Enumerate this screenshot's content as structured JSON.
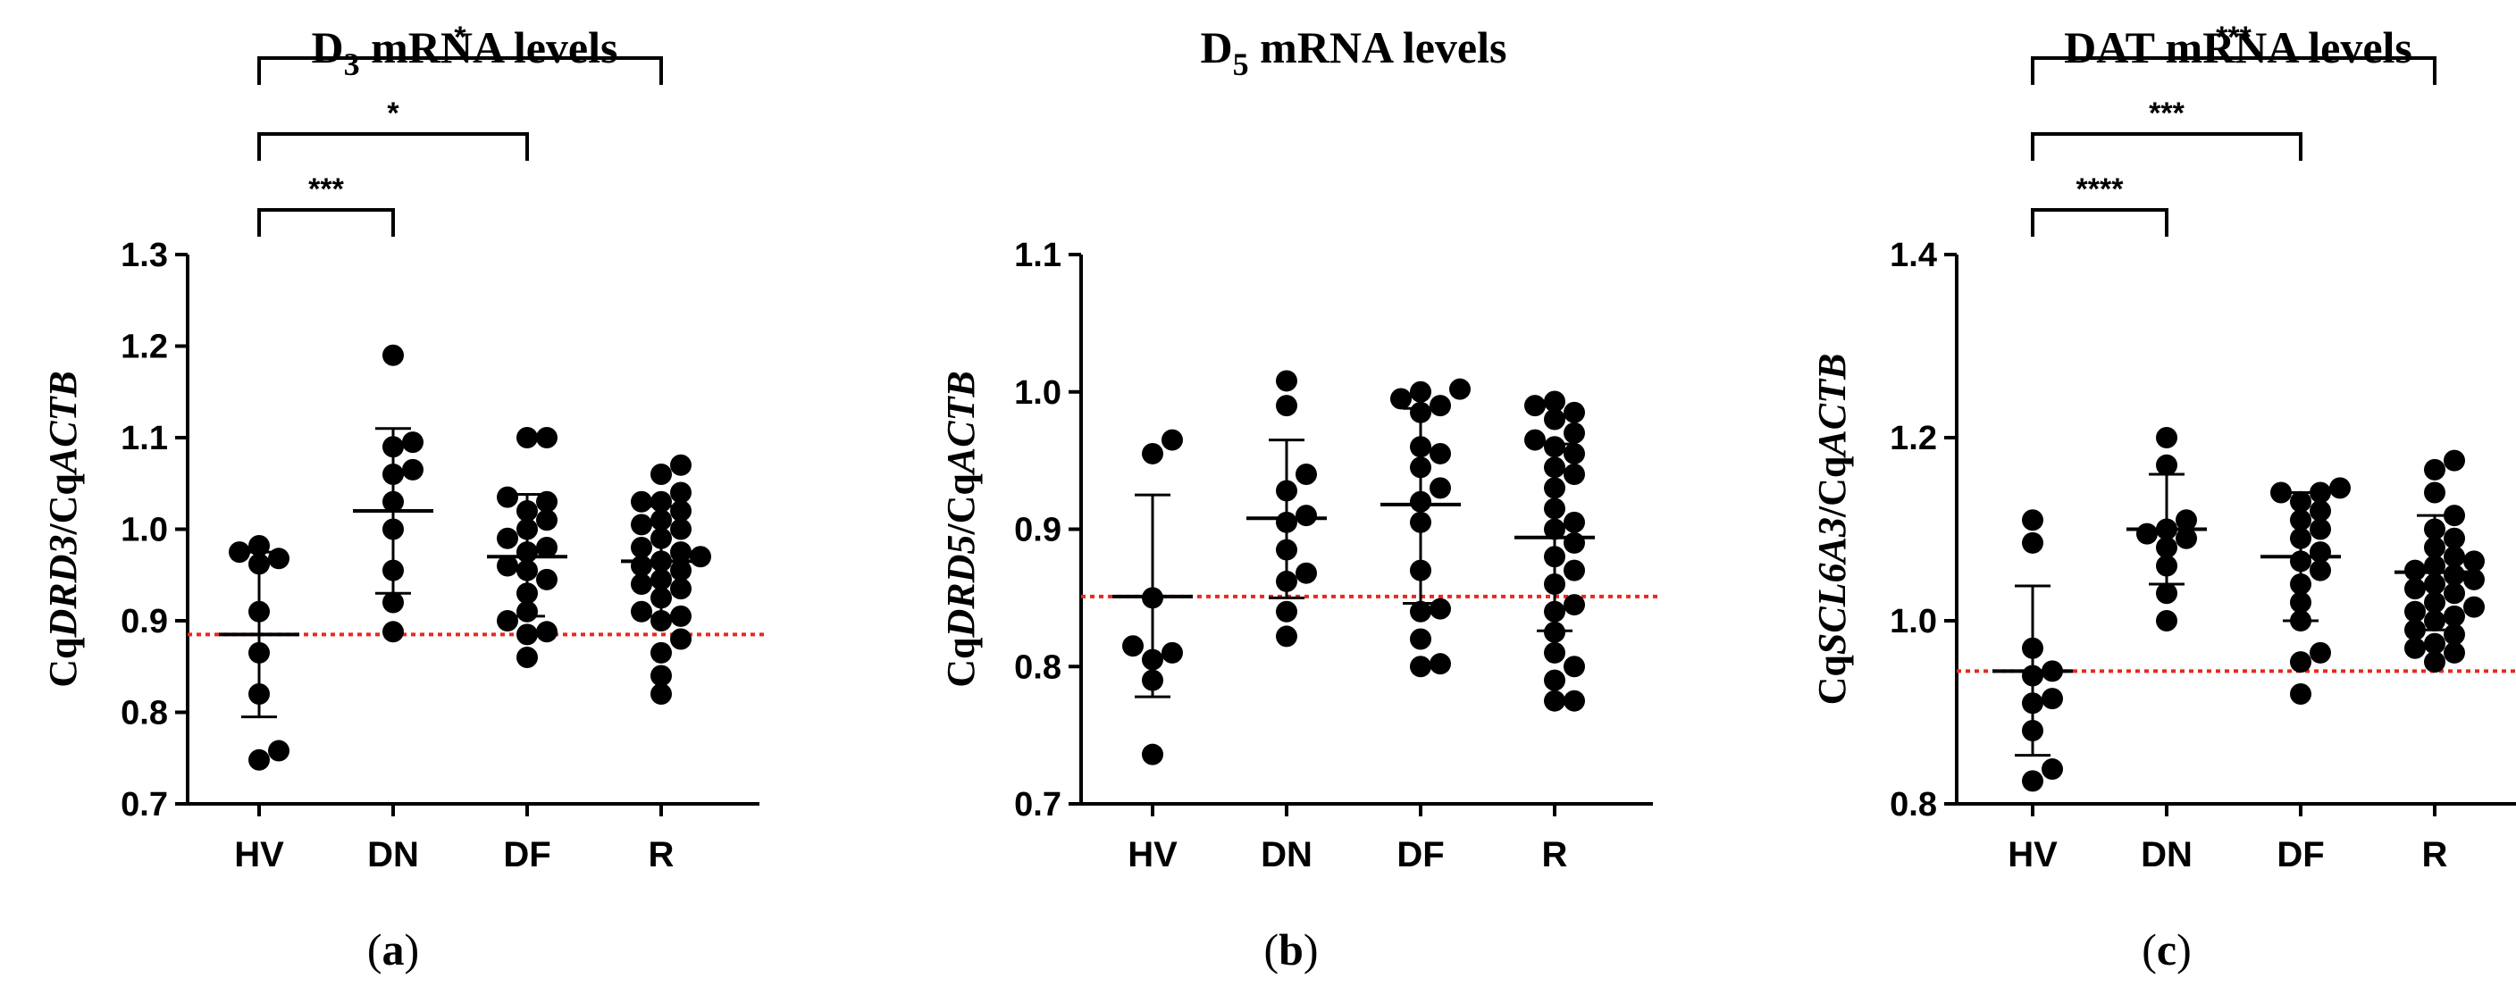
{
  "chart_data": [
    {
      "type": "scatter",
      "panel": "(a)",
      "title_main": "D",
      "title_sub": "3",
      "title_rest": " mRNA levels",
      "ylabel_prefix": "Cq",
      "ylabel_gene": "DRD3",
      "ylabel_sep": "/Cq",
      "ylabel_ref": "ACTB",
      "ylim": [
        0.7,
        1.3
      ],
      "yticks": [
        "0.7",
        "0.8",
        "0.9",
        "1.0",
        "1.1",
        "1.2",
        "1.3"
      ],
      "categories": [
        "HV",
        "DN",
        "DF",
        "R"
      ],
      "reference_line": 0.885,
      "reference_color": "#e8291c",
      "groups": [
        {
          "name": "HV",
          "mean": 0.885,
          "sd_low": 0.795,
          "sd_high": 0.975,
          "points": [
            0.748,
            0.758,
            0.82,
            0.865,
            0.91,
            0.962,
            0.968,
            0.975,
            0.982
          ]
        },
        {
          "name": "DN",
          "mean": 1.02,
          "sd_low": 0.93,
          "sd_high": 1.11,
          "points": [
            0.888,
            0.92,
            0.955,
            1.0,
            1.03,
            1.06,
            1.065,
            1.09,
            1.095,
            1.19
          ]
        },
        {
          "name": "DF",
          "mean": 0.97,
          "sd_low": 0.905,
          "sd_high": 1.038,
          "points": [
            0.86,
            0.885,
            0.888,
            0.9,
            0.91,
            0.93,
            0.945,
            0.955,
            0.96,
            0.975,
            0.98,
            0.99,
            1.0,
            1.01,
            1.02,
            1.03,
            1.035,
            1.1,
            1.1
          ]
        },
        {
          "name": "R",
          "mean": 0.965,
          "sd_low": 0.905,
          "sd_high": 1.025,
          "points": [
            0.82,
            0.84,
            0.865,
            0.88,
            0.9,
            0.905,
            0.91,
            0.925,
            0.935,
            0.94,
            0.945,
            0.955,
            0.96,
            0.965,
            0.97,
            0.975,
            0.98,
            0.99,
            1.0,
            1.005,
            1.01,
            1.02,
            1.03,
            1.03,
            1.04,
            1.06,
            1.07
          ]
        }
      ],
      "brackets": [
        {
          "from": "HV",
          "to": "DN",
          "label": "***",
          "level": 1
        },
        {
          "from": "HV",
          "to": "DF",
          "label": "*",
          "level": 2
        },
        {
          "from": "HV",
          "to": "R",
          "label": "*",
          "level": 3
        }
      ]
    },
    {
      "type": "scatter",
      "panel": "(b)",
      "title_main": "D",
      "title_sub": "5",
      "title_rest": " mRNA levels",
      "ylabel_prefix": "Cq",
      "ylabel_gene": "DRD5",
      "ylabel_sep": "/Cq",
      "ylabel_ref": "ACTB",
      "ylim": [
        0.7,
        1.1
      ],
      "yticks": [
        "0.7",
        "0.8",
        "0.9",
        "1.0",
        "1.1"
      ],
      "categories": [
        "HV",
        "DN",
        "DF",
        "R"
      ],
      "reference_line": 0.851,
      "reference_color": "#e8291c",
      "groups": [
        {
          "name": "HV",
          "mean": 0.851,
          "sd_low": 0.778,
          "sd_high": 0.925,
          "points": [
            0.736,
            0.79,
            0.805,
            0.81,
            0.815,
            0.85,
            0.955,
            0.965
          ]
        },
        {
          "name": "DN",
          "mean": 0.908,
          "sd_low": 0.85,
          "sd_high": 0.965,
          "points": [
            0.822,
            0.84,
            0.862,
            0.868,
            0.885,
            0.905,
            0.91,
            0.928,
            0.94,
            0.99,
            1.008
          ]
        },
        {
          "name": "DF",
          "mean": 0.918,
          "sd_low": 0.846,
          "sd_high": 0.988,
          "points": [
            0.8,
            0.802,
            0.82,
            0.84,
            0.842,
            0.87,
            0.905,
            0.92,
            0.93,
            0.945,
            0.955,
            0.96,
            0.985,
            0.99,
            0.995,
            1.0,
            1.002
          ]
        },
        {
          "name": "R",
          "mean": 0.894,
          "sd_low": 0.826,
          "sd_high": 0.962,
          "points": [
            0.775,
            0.775,
            0.79,
            0.8,
            0.81,
            0.825,
            0.84,
            0.845,
            0.86,
            0.87,
            0.88,
            0.89,
            0.9,
            0.905,
            0.915,
            0.93,
            0.94,
            0.945,
            0.955,
            0.96,
            0.965,
            0.97,
            0.98,
            0.985,
            0.99,
            0.993
          ]
        }
      ],
      "brackets": []
    },
    {
      "type": "scatter",
      "panel": "(c)",
      "title_main": "DAT",
      "title_sub": "",
      "title_rest": " mRNA levels",
      "ylabel_prefix": "Cq",
      "ylabel_gene": "SCL6A3",
      "ylabel_sep": "/Cq",
      "ylabel_ref": "ACTB",
      "ylim": [
        0.8,
        1.4
      ],
      "yticks": [
        "0.8",
        "1.0",
        "1.2",
        "1.4"
      ],
      "categories": [
        "HV",
        "DN",
        "DF",
        "R"
      ],
      "reference_line": 0.945,
      "reference_color": "#e8291c",
      "groups": [
        {
          "name": "HV",
          "mean": 0.945,
          "sd_low": 0.853,
          "sd_high": 1.038,
          "points": [
            0.825,
            0.838,
            0.88,
            0.91,
            0.915,
            0.94,
            0.945,
            0.97,
            1.085,
            1.11
          ]
        },
        {
          "name": "DN",
          "mean": 1.1,
          "sd_low": 1.04,
          "sd_high": 1.16,
          "points": [
            1.0,
            1.03,
            1.06,
            1.08,
            1.09,
            1.095,
            1.1,
            1.11,
            1.17,
            1.2
          ]
        },
        {
          "name": "DF",
          "mean": 1.07,
          "sd_low": 1.0,
          "sd_high": 1.14,
          "points": [
            0.92,
            0.955,
            0.965,
            1.0,
            1.02,
            1.04,
            1.055,
            1.065,
            1.075,
            1.09,
            1.1,
            1.11,
            1.12,
            1.13,
            1.14,
            1.14,
            1.145
          ]
        },
        {
          "name": "R",
          "mean": 1.053,
          "sd_low": 0.99,
          "sd_high": 1.115,
          "points": [
            0.955,
            0.965,
            0.97,
            0.975,
            0.985,
            0.99,
            1.0,
            1.005,
            1.01,
            1.015,
            1.02,
            1.03,
            1.035,
            1.04,
            1.045,
            1.05,
            1.055,
            1.06,
            1.065,
            1.07,
            1.08,
            1.09,
            1.1,
            1.115,
            1.14,
            1.165,
            1.175
          ]
        }
      ],
      "brackets": [
        {
          "from": "HV",
          "to": "DN",
          "label": "****",
          "level": 1
        },
        {
          "from": "HV",
          "to": "DF",
          "label": "***",
          "level": 2
        },
        {
          "from": "HV",
          "to": "R",
          "label": "***",
          "level": 3
        }
      ]
    }
  ]
}
